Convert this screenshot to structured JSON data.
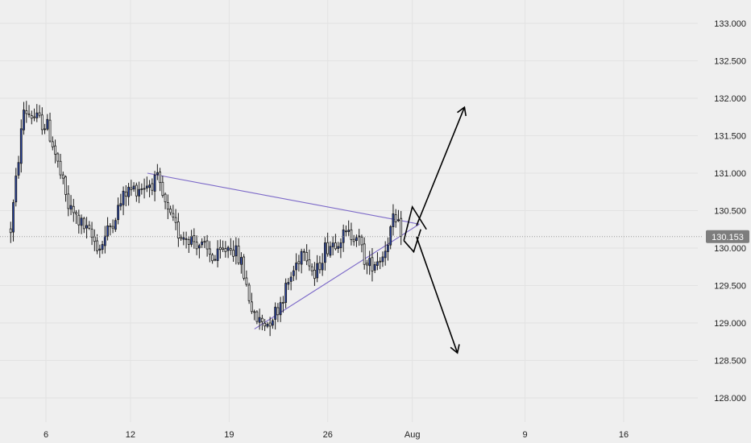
{
  "chart_data": {
    "type": "candlestick",
    "title": "",
    "xlabel": "",
    "ylabel": "",
    "ylim": [
      127.5,
      133.3
    ],
    "y_ticks": [
      "133.000",
      "132.500",
      "132.000",
      "131.500",
      "131.000",
      "130.500",
      "130.000",
      "129.500",
      "129.000",
      "128.500",
      "128.000"
    ],
    "y_tick_values": [
      133.0,
      132.5,
      132.0,
      131.5,
      131.0,
      130.5,
      130.0,
      129.5,
      129.0,
      128.5,
      128.0
    ],
    "x_ticks": [
      "6",
      "12",
      "19",
      "26",
      "Aug",
      "9",
      "16"
    ],
    "x_tick_days": [
      6,
      12,
      19,
      26,
      32,
      40,
      47
    ],
    "x_range_days": [
      3.5,
      50.3
    ],
    "grid": true,
    "last_price": 130.153,
    "last_price_label": "130.153",
    "candles": {
      "count": 150,
      "start_day": 3.5,
      "end_day": 31.2,
      "path_anchors": [
        [
          0,
          130.25
        ],
        [
          5,
          131.85
        ],
        [
          14,
          131.62
        ],
        [
          16,
          131.4
        ],
        [
          22,
          130.55
        ],
        [
          34,
          130.0
        ],
        [
          40,
          130.45
        ],
        [
          44,
          130.75
        ],
        [
          56,
          130.9
        ],
        [
          60,
          130.45
        ],
        [
          64,
          130.2
        ],
        [
          68,
          130.15
        ],
        [
          72,
          130.05
        ],
        [
          78,
          129.85
        ],
        [
          84,
          130.05
        ],
        [
          88,
          129.8
        ],
        [
          93,
          129.05
        ],
        [
          98,
          129.0
        ],
        [
          102,
          129.2
        ],
        [
          108,
          129.7
        ],
        [
          112,
          130.05
        ],
        [
          116,
          129.6
        ],
        [
          120,
          130.0
        ],
        [
          126,
          130.15
        ],
        [
          132,
          130.2
        ],
        [
          136,
          129.75
        ],
        [
          142,
          129.9
        ],
        [
          146,
          130.35
        ],
        [
          150,
          130.2
        ]
      ],
      "bull_color": "#2a46a8",
      "bear_color": "#ffffff",
      "wick_color": "#1a1a1a"
    },
    "annotations": {
      "triangle": {
        "color": "#7b68c8",
        "upper": [
          [
            13.2,
            131.0
          ],
          [
            32.5,
            130.32
          ]
        ],
        "lower": [
          [
            20.8,
            128.92
          ],
          [
            32.5,
            130.32
          ]
        ]
      },
      "projection_zigzag": {
        "color": "#000000",
        "points": [
          [
            31.4,
            130.1
          ],
          [
            32.0,
            130.55
          ],
          [
            33.0,
            130.25
          ]
        ]
      },
      "projection_down_zigzag": {
        "color": "#000000",
        "points": [
          [
            31.4,
            130.1
          ],
          [
            32.1,
            129.95
          ],
          [
            32.6,
            130.25
          ]
        ]
      },
      "arrow_up": {
        "color": "#000000",
        "from": [
          32.3,
          130.3
        ],
        "to": [
          35.7,
          131.88
        ]
      },
      "arrow_down": {
        "color": "#000000",
        "from": [
          32.3,
          130.15
        ],
        "to": [
          35.2,
          128.6
        ]
      }
    },
    "colors": {
      "background": "#efefef",
      "grid": "#e2e2e2",
      "axis_text": "#222222",
      "last_price_line": "#9a9a9a",
      "last_price_label_bg": "#7d7d7d"
    }
  }
}
